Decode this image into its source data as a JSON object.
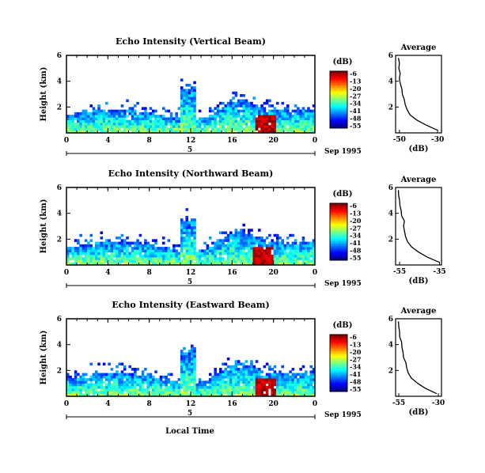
{
  "date_label": "Sep 1995",
  "local_time_label": "Local Time",
  "chart_data": [
    {
      "type": "heatmap",
      "title": "Echo Intensity (Vertical Beam)",
      "ylabel": "Height (km)",
      "xlim": [
        0,
        24
      ],
      "ylim": [
        0,
        6
      ],
      "xticks": [
        "0",
        "4",
        "8",
        "12",
        "16",
        "20",
        "0"
      ],
      "yticks": [
        "2",
        "4",
        "6"
      ],
      "date_marker": "5",
      "colorbar": {
        "unit": "(dB)",
        "ticks": [
          "-6",
          "-13",
          "-20",
          "-27",
          "-34",
          "-41",
          "-48",
          "-55"
        ],
        "range": [
          -55,
          -6
        ]
      },
      "profile": {
        "title": "Average",
        "xlabel": "(dB)",
        "xticks": [
          "-50",
          "-30"
        ],
        "yticks": [
          "2",
          "4",
          "6"
        ],
        "xlim": [
          -52,
          -28
        ],
        "heights": [
          0.2,
          0.6,
          1.0,
          1.4,
          1.8,
          2.2,
          2.6,
          3.0,
          3.4,
          3.8,
          4.2,
          4.6,
          5.0,
          5.4,
          5.8
        ],
        "values": [
          -30,
          -36,
          -41,
          -44.5,
          -46,
          -47,
          -47.5,
          -48.5,
          -48.7,
          -49.5,
          -50,
          -49.6,
          -50.3,
          -50,
          -50.5
        ]
      },
      "red_core_hour": 19.2
    },
    {
      "type": "heatmap",
      "title": "Echo Intensity (Northward Beam)",
      "ylabel": "Height (km)",
      "xlim": [
        0,
        24
      ],
      "ylim": [
        0,
        6
      ],
      "xticks": [
        "0",
        "4",
        "8",
        "12",
        "16",
        "20",
        "0"
      ],
      "yticks": [
        "2",
        "4",
        "6"
      ],
      "date_marker": "5",
      "colorbar": {
        "unit": "(dB)",
        "ticks": [
          "-6",
          "-13",
          "-20",
          "-27",
          "-34",
          "-41",
          "-48",
          "-55"
        ],
        "range": [
          -55,
          -6
        ]
      },
      "profile": {
        "title": "Average",
        "xlabel": "(dB)",
        "xticks": [
          "-55",
          "-35"
        ],
        "yticks": [
          "2",
          "4",
          "6"
        ],
        "xlim": [
          -57,
          -34
        ],
        "heights": [
          0.2,
          0.6,
          1.0,
          1.4,
          1.8,
          2.2,
          2.6,
          3.0,
          3.4,
          3.8,
          4.2,
          4.6,
          5.0,
          5.4,
          5.8
        ],
        "values": [
          -35,
          -41,
          -45.5,
          -49,
          -51,
          -52,
          -52.5,
          -53,
          -52.6,
          -54,
          -54.2,
          -54.8,
          -55,
          -55.5,
          -55.6
        ]
      },
      "red_core_hour": 19.0
    },
    {
      "type": "heatmap",
      "title": "Echo Intensity (Eastward Beam)",
      "ylabel": "Height (km)",
      "xlim": [
        0,
        24
      ],
      "ylim": [
        0,
        6
      ],
      "xticks": [
        "0",
        "4",
        "8",
        "12",
        "16",
        "20",
        "0"
      ],
      "yticks": [
        "2",
        "4",
        "6"
      ],
      "date_marker": "5",
      "colorbar": {
        "unit": "(dB)",
        "ticks": [
          "-6",
          "-13",
          "-20",
          "-27",
          "-34",
          "-41",
          "-48",
          "-55"
        ],
        "range": [
          -55,
          -6
        ]
      },
      "profile": {
        "title": "Average",
        "xlabel": "(dB)",
        "xticks": [
          "-55",
          "-30"
        ],
        "yticks": [
          "2",
          "4",
          "6"
        ],
        "xlim": [
          -57,
          -28
        ],
        "heights": [
          0.2,
          0.6,
          1.0,
          1.4,
          1.8,
          2.2,
          2.6,
          3.0,
          3.4,
          3.8,
          4.2,
          4.6,
          5.0,
          5.4,
          5.8
        ],
        "values": [
          -31,
          -38,
          -43,
          -47,
          -49,
          -50,
          -50.5,
          -52,
          -52.3,
          -53,
          -53.2,
          -54.4,
          -54.5,
          -55,
          -55.2
        ]
      },
      "red_core_hour": 19.3
    }
  ]
}
